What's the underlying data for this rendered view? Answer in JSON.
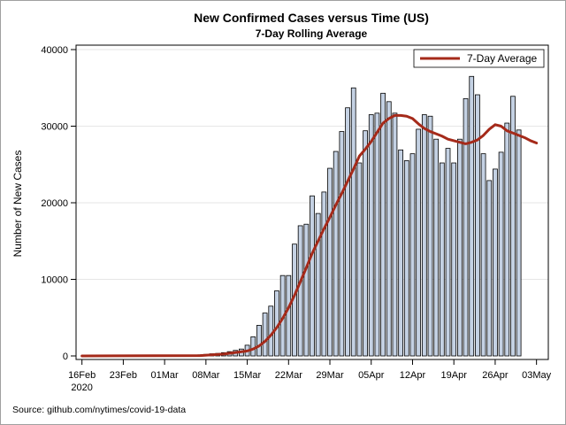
{
  "chart_data": {
    "type": "bar",
    "title": "New Confirmed Cases versus Time (US)",
    "subtitle": "7-Day Rolling Average",
    "xlabel": "",
    "ylabel": "Number of New Cases",
    "ylim": [
      0,
      40000
    ],
    "yticks": [
      "0",
      "10000",
      "20000",
      "30000",
      "40000"
    ],
    "xticks": [
      {
        "day": 0,
        "label": "16Feb",
        "label2": "2020"
      },
      {
        "day": 7,
        "label": "23Feb"
      },
      {
        "day": 14,
        "label": "01Mar"
      },
      {
        "day": 21,
        "label": "08Mar"
      },
      {
        "day": 28,
        "label": "15Mar"
      },
      {
        "day": 35,
        "label": "22Mar"
      },
      {
        "day": 42,
        "label": "29Mar"
      },
      {
        "day": 49,
        "label": "05Apr"
      },
      {
        "day": 56,
        "label": "12Apr"
      },
      {
        "day": 63,
        "label": "19Apr"
      },
      {
        "day": 70,
        "label": "26Apr"
      },
      {
        "day": 77,
        "label": "03May"
      }
    ],
    "xlim_days": [
      -1,
      79
    ],
    "bar_start_day": 20,
    "bar_values": [
      140,
      200,
      280,
      330,
      430,
      560,
      720,
      900,
      1400,
      2500,
      4000,
      5600,
      6500,
      8500,
      10500,
      10500,
      14600,
      17000,
      17200,
      20900,
      18600,
      21400,
      24500,
      26700,
      29300,
      32400,
      35000,
      25200,
      29400,
      31500,
      31700,
      34300,
      33200,
      31700,
      26900,
      25500,
      26400,
      29600,
      31500,
      31300,
      28300,
      25200,
      27100,
      25200,
      28300,
      33600,
      36500,
      34100,
      26400,
      22900,
      24400,
      26600,
      30400,
      33900,
      29500
    ],
    "series": [
      {
        "name": "7-Day Average",
        "color": "#a52a1a",
        "x": [
          0,
          20,
          24,
          26,
          28,
          29,
          30,
          31,
          32,
          33,
          34,
          35,
          36,
          37,
          38,
          39,
          40,
          41,
          42,
          43,
          44,
          45,
          46,
          47,
          48,
          49,
          50,
          51,
          52,
          53,
          54,
          55,
          56,
          57,
          58,
          59,
          60,
          61,
          62,
          63,
          64,
          65,
          66,
          67,
          68,
          69,
          70,
          71,
          72,
          73,
          74,
          75,
          76,
          77
        ],
        "values": [
          0,
          50,
          250,
          450,
          650,
          900,
          1300,
          1900,
          2700,
          3700,
          4900,
          6300,
          7900,
          9700,
          11500,
          13400,
          15000,
          16600,
          18100,
          19700,
          21200,
          22800,
          24400,
          26100,
          27000,
          28000,
          29200,
          30400,
          31000,
          31400,
          31400,
          31300,
          31000,
          30300,
          29700,
          29300,
          29000,
          28700,
          28300,
          28100,
          27900,
          27700,
          27900,
          28200,
          28800,
          29600,
          30200,
          30000,
          29400,
          29100,
          28800,
          28500,
          28100,
          27800
        ]
      }
    ],
    "legend_position": "top-right",
    "grid": true,
    "bar_fill": "#c4d1e3",
    "bar_stroke": "#000000",
    "footnote": "Source: github.com/nytimes/covid-19-data"
  }
}
